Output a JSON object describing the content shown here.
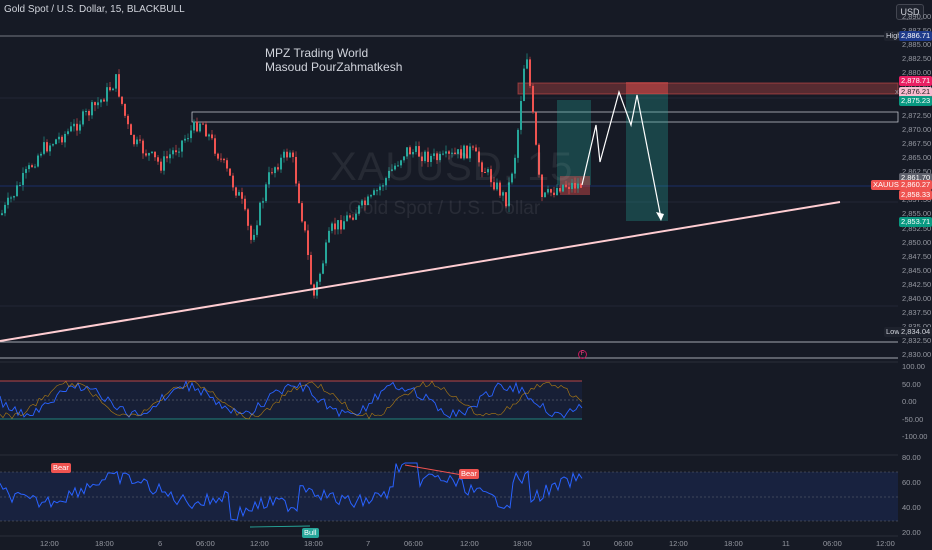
{
  "header": {
    "symbol_info": "Gold Spot / U.S. Dollar, 15, BLACKBULL",
    "currency": "USD"
  },
  "watermark": {
    "ticker": "XAUUSD, 15",
    "name": "Gold Spot / U.S. Dollar"
  },
  "annotation": {
    "line1": "MPZ Trading World",
    "line2": "Masoud PourZahmatkesh"
  },
  "price_axis": {
    "ticks": [
      "2,890.00",
      "2,887.50",
      "2,885.00",
      "2,882.50",
      "2,880.00",
      "2,877.50",
      "2,875.00",
      "2,872.50",
      "2,870.00",
      "2,867.50",
      "2,865.00",
      "2,862.50",
      "2,860.00",
      "2,857.50",
      "2,855.00",
      "2,852.50",
      "2,850.00",
      "2,847.50",
      "2,845.00",
      "2,842.50",
      "2,840.00",
      "2,837.50",
      "2,835.00",
      "2,832.50",
      "2,830.00"
    ],
    "high_label": "High",
    "high_value": "2,886.71",
    "low_label": "Low",
    "low_value": "2,834.04",
    "zone_top": "2,878.71",
    "zone_mid": "2,876.21",
    "zone_green": "2,875.23",
    "x_mark": "x",
    "level_a": "2,861.70",
    "symbol_tag": "XAUUSD",
    "current_price": "2,860.27",
    "level_b": "2,858.33",
    "target": "2,853.71"
  },
  "cci_axis": [
    "100.00",
    "50.00",
    "0.00",
    "-50.00",
    "-100.00"
  ],
  "rsi_axis": [
    "80.00",
    "60.00",
    "40.00",
    "20.00"
  ],
  "rsi_labels": {
    "bear": "Bear",
    "bull": "Bull"
  },
  "time_axis": [
    "12:00",
    "18:00",
    "6",
    "06:00",
    "12:00",
    "18:00",
    "7",
    "06:00",
    "12:00",
    "18:00",
    "10",
    "06:00",
    "12:00",
    "18:00",
    "11",
    "06:00",
    "12:00"
  ],
  "info_marker": "F",
  "colors": {
    "up": "#26a69a",
    "down": "#ef5350",
    "trend": "#ffcdd2",
    "rsi": "#2962ff"
  }
}
